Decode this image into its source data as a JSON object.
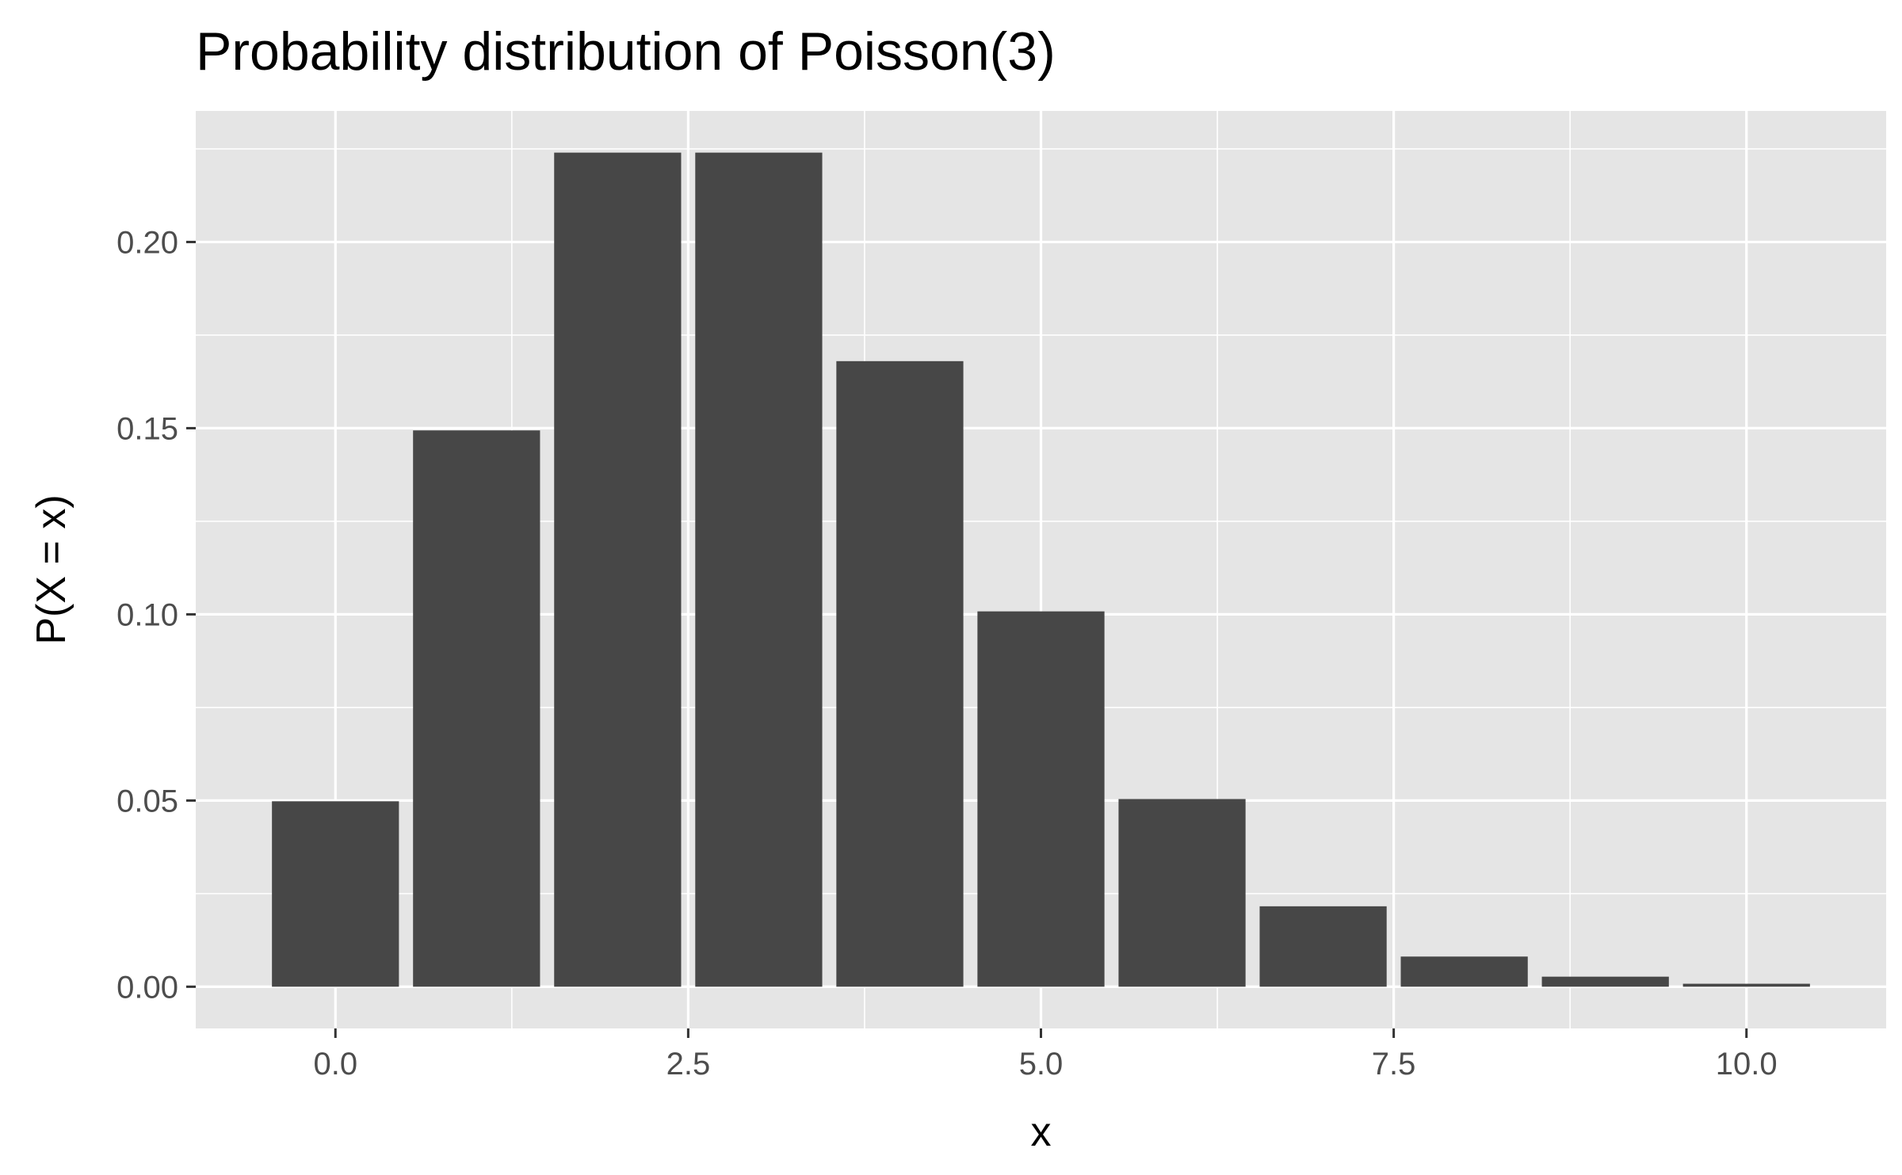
{
  "chart_data": {
    "type": "bar",
    "title": "Probability distribution of Poisson(3)",
    "xlabel": "x",
    "ylabel": "P(X = x)",
    "x": [
      0,
      1,
      2,
      3,
      4,
      5,
      6,
      7,
      8,
      9,
      10
    ],
    "values": [
      0.0498,
      0.1494,
      0.224,
      0.224,
      0.168,
      0.1008,
      0.0504,
      0.0216,
      0.0081,
      0.0027,
      0.0008
    ],
    "xlim": [
      -0.99,
      10.99
    ],
    "ylim": [
      -0.0112,
      0.2352
    ],
    "xticks": [
      0,
      2.5,
      5,
      7.5,
      10
    ],
    "xtick_labels": [
      "0.0",
      "2.5",
      "5.0",
      "7.5",
      "10.0"
    ],
    "yticks": [
      0,
      0.05,
      0.1,
      0.15,
      0.2
    ],
    "ytick_labels": [
      "0.00",
      "0.05",
      "0.10",
      "0.15",
      "0.20"
    ],
    "grid": true,
    "legend": "none",
    "colors": {
      "panel_background": "#e5e5e5",
      "grid": "#ffffff",
      "bar_fill": "#474747",
      "tick": "#333333",
      "tick_label": "#4d4d4d"
    }
  }
}
